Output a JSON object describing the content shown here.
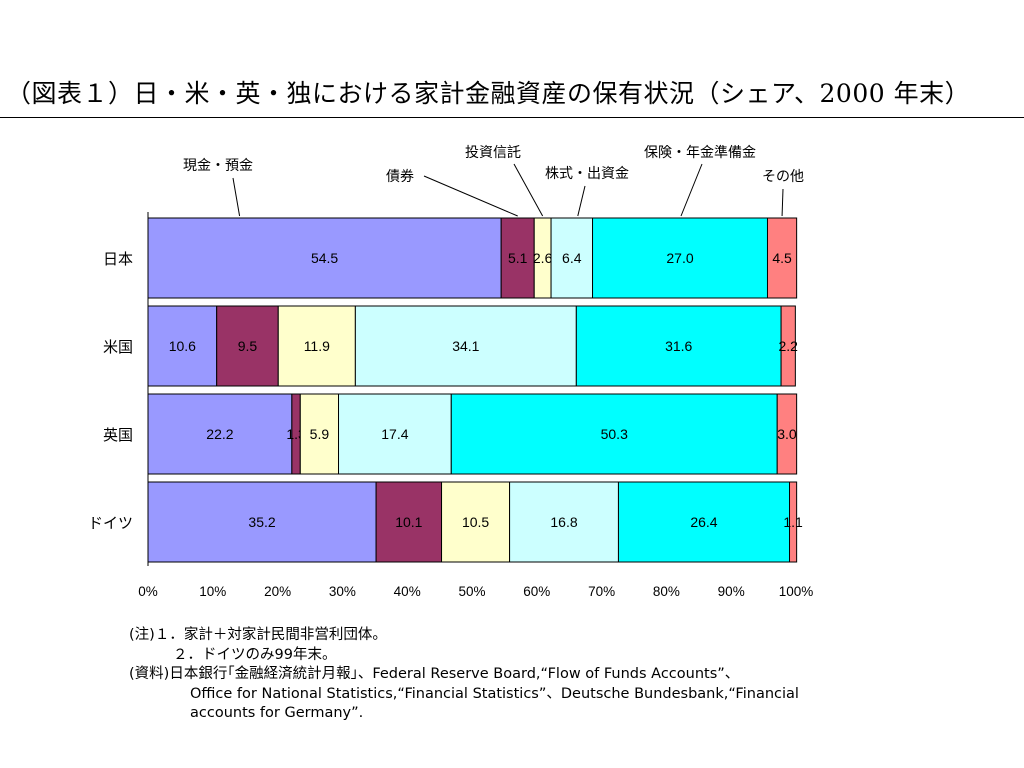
{
  "title": "（図表１）日・米・英・独における家計金融資産の保有状況（シェア、2000 年末）",
  "chart_data": {
    "type": "bar",
    "orientation": "horizontal",
    "stacked": true,
    "categories": [
      "日本",
      "米国",
      "英国",
      "ドイツ"
    ],
    "series": [
      {
        "name": "現金・預金",
        "color": "#9999ff",
        "values": [
          54.5,
          10.6,
          22.2,
          35.2
        ]
      },
      {
        "name": "債券",
        "color": "#993366",
        "values": [
          5.1,
          9.5,
          1.3,
          10.1
        ]
      },
      {
        "name": "投資信託",
        "color": "#ffffcc",
        "values": [
          2.6,
          11.9,
          5.9,
          10.5
        ]
      },
      {
        "name": "株式・出資金",
        "color": "#ccffff",
        "values": [
          6.4,
          34.1,
          17.4,
          16.8
        ]
      },
      {
        "name": "保険・年金準備金",
        "color": "#00ffff",
        "values": [
          27.0,
          31.6,
          50.3,
          26.4
        ]
      },
      {
        "name": "その他",
        "color": "#ff8080",
        "values": [
          4.5,
          2.2,
          3.0,
          1.1
        ]
      }
    ],
    "data_labels": [
      [
        "54.5",
        "5.1",
        "2.6",
        "6.4",
        "27.0",
        "4.5"
      ],
      [
        "10.6",
        "9.5",
        "11.9",
        "34.1",
        "31.6",
        "2.2"
      ],
      [
        "22.2",
        "1.3",
        "5.9",
        "17.4",
        "50.3",
        "3.0"
      ],
      [
        "35.2",
        "10.1",
        "10.5",
        "16.8",
        "26.4",
        "1.1"
      ]
    ],
    "x_ticks": [
      "0%",
      "10%",
      "20%",
      "30%",
      "40%",
      "50%",
      "60%",
      "70%",
      "80%",
      "90%",
      "100%"
    ],
    "xlim": [
      0,
      100
    ],
    "legend": "callouts above top bar",
    "grid": false
  },
  "notes": {
    "line1": "(注)１．家計＋対家計民間非営利団体。",
    "line2": "２．ドイツのみ99年末。",
    "line3": "(資料)日本銀行｢金融経済統計月報｣、Federal Reserve Board,“Flow of Funds Accounts”、",
    "line4": "Office for National Statistics,“Financial Statistics”、Deutsche Bundesbank,“Financial",
    "line5": "accounts for Germany”."
  }
}
